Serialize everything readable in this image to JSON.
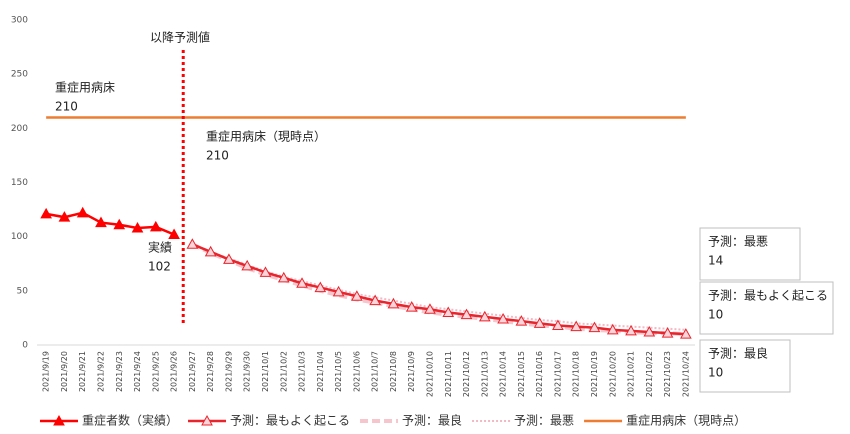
{
  "chart_data": {
    "type": "line",
    "categories": [
      "2021/9/19",
      "2021/9/20",
      "2021/9/21",
      "2021/9/22",
      "2021/9/23",
      "2021/9/24",
      "2021/9/25",
      "2021/9/26",
      "2021/9/27",
      "2021/9/28",
      "2021/9/29",
      "2021/9/30",
      "2021/10/1",
      "2021/10/2",
      "2021/10/3",
      "2021/10/4",
      "2021/10/5",
      "2021/10/6",
      "2021/10/7",
      "2021/10/8",
      "2021/10/9",
      "2021/10/10",
      "2021/10/11",
      "2021/10/12",
      "2021/10/13",
      "2021/10/14",
      "2021/10/15",
      "2021/10/16",
      "2021/10/17",
      "2021/10/18",
      "2021/10/19",
      "2021/10/20",
      "2021/10/21",
      "2021/10/22",
      "2021/10/23",
      "2021/10/24"
    ],
    "series": [
      {
        "name": "重症者数（実績）",
        "color": "#ff0000",
        "line_style": "solid",
        "marker": "triangle",
        "values": [
          121,
          118,
          122,
          113,
          111,
          108,
          109,
          102,
          null,
          null,
          null,
          null,
          null,
          null,
          null,
          null,
          null,
          null,
          null,
          null,
          null,
          null,
          null,
          null,
          null,
          null,
          null,
          null,
          null,
          null,
          null,
          null,
          null,
          null,
          null,
          null
        ]
      },
      {
        "name": "予測：最もよく起こる",
        "color": "#e8242c",
        "line_style": "solid",
        "marker": "triangle-open",
        "values": [
          null,
          null,
          null,
          null,
          null,
          null,
          null,
          null,
          93,
          86,
          79,
          73,
          67,
          62,
          57,
          53,
          49,
          45,
          41,
          38,
          35,
          33,
          30,
          28,
          26,
          24,
          22,
          20,
          18,
          17,
          16,
          14,
          13,
          12,
          11,
          10
        ]
      },
      {
        "name": "予測：最良",
        "color": "#f6c6cc",
        "line_style": "dashed",
        "marker": "none",
        "values": [
          null,
          null,
          null,
          null,
          null,
          null,
          null,
          null,
          93,
          85,
          78,
          71,
          65,
          60,
          55,
          50,
          46,
          42,
          39,
          36,
          33,
          30,
          28,
          26,
          24,
          22,
          20,
          18,
          17,
          15,
          14,
          13,
          12,
          11,
          11,
          10
        ]
      },
      {
        "name": "予測：最悪",
        "color": "#f4b8c4",
        "line_style": "dotted",
        "marker": "none",
        "values": [
          null,
          null,
          null,
          null,
          null,
          null,
          null,
          null,
          93,
          86,
          80,
          74,
          68,
          63,
          59,
          55,
          51,
          47,
          44,
          41,
          38,
          35,
          33,
          31,
          29,
          27,
          25,
          23,
          22,
          20,
          19,
          18,
          17,
          16,
          15,
          14
        ]
      },
      {
        "name": "重症用病床（現時点）",
        "color": "#ed7d31",
        "line_style": "solid",
        "marker": "none",
        "values": [
          210,
          210,
          210,
          210,
          210,
          210,
          210,
          210,
          210,
          210,
          210,
          210,
          210,
          210,
          210,
          210,
          210,
          210,
          210,
          210,
          210,
          210,
          210,
          210,
          210,
          210,
          210,
          210,
          210,
          210,
          210,
          210,
          210,
          210,
          210,
          210
        ]
      }
    ],
    "ylim": [
      0,
      300
    ],
    "yticks": [
      0,
      50,
      100,
      150,
      200,
      250,
      300
    ],
    "grid": false,
    "legend": "bottom",
    "annotations": [
      {
        "text": "以降予測値"
      },
      {
        "text": "重症用病床",
        "value": 210
      },
      {
        "text": "重症用病床（現時点）",
        "value": 210
      },
      {
        "text": "実績",
        "value": 102
      },
      {
        "text": "予測：最悪",
        "value": 14
      },
      {
        "text": "予測：最もよく起こる",
        "value": 10
      },
      {
        "text": "予測：最良",
        "value": 10
      }
    ]
  }
}
